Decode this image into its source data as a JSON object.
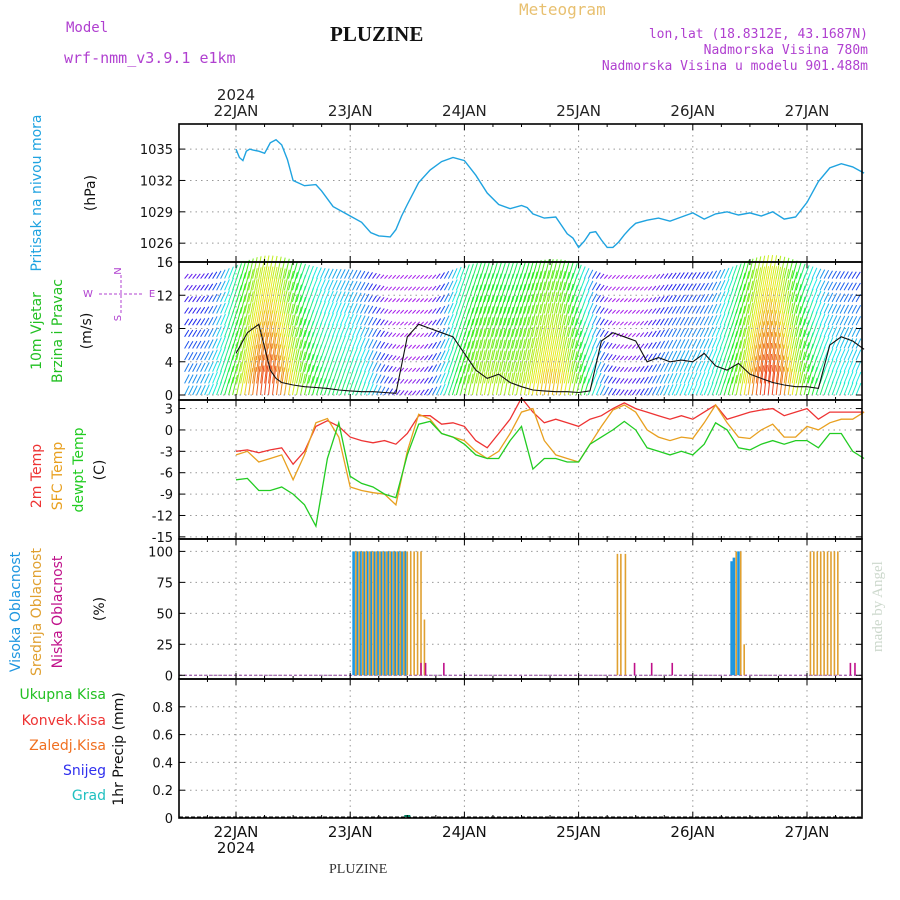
{
  "header": {
    "model_label": "Model",
    "model_name": "wrf-nmm_v3.9.1 e1km",
    "station": "PLUZINE",
    "meteogram_label": "Meteogram",
    "lonlat": "lon,lat (18.8312E, 43.1687N)",
    "altitude": "Nadmorska Visina 780m",
    "model_altitude": "Nadmorska Visina u modelu 901.488m",
    "footer_station": "PLUZINE",
    "watermark": "made by Angel"
  },
  "colors": {
    "pressure": "#1fa3e0",
    "temp2m": "#ee3333",
    "sfc": "#e8a020",
    "dewpt": "#22cc22",
    "high_cloud": "#1e96e0",
    "mid_cloud": "#e0a030",
    "low_cloud": "#c0108a",
    "purple": "#b040d0"
  },
  "time_axis": {
    "year": "2024",
    "dates": [
      "22JAN",
      "23JAN",
      "24JAN",
      "25JAN",
      "26JAN",
      "27JAN"
    ]
  },
  "chart_data": [
    {
      "type": "line",
      "panel": "pressure",
      "ylabel_main": "Pritisak na nivou mora",
      "ylabel_unit": "(hPa)",
      "ylim": [
        1024.2,
        1037.4
      ],
      "yticks": [
        "1035",
        "1032",
        "1029",
        "1026"
      ],
      "grid": true,
      "x": [
        0,
        0.03,
        0.06,
        0.09,
        0.12,
        0.15,
        0.2,
        0.25,
        0.3,
        0.35,
        0.4,
        0.45,
        0.5,
        0.6,
        0.7,
        0.75,
        0.85,
        1.0,
        1.1,
        1.18,
        1.25,
        1.35,
        1.4,
        1.45,
        1.5,
        1.6,
        1.7,
        1.8,
        1.9,
        2.0,
        2.1,
        2.2,
        2.3,
        2.4,
        2.5,
        2.55,
        2.6,
        2.7,
        2.8,
        2.9,
        2.95,
        3.0,
        3.05,
        3.1,
        3.15,
        3.2,
        3.25,
        3.3,
        3.35,
        3.4,
        3.45,
        3.5,
        3.6,
        3.7,
        3.8,
        3.9,
        4.0,
        4.1,
        4.2,
        4.3,
        4.4,
        4.5,
        4.6,
        4.7,
        4.8,
        4.9,
        5.0,
        5.1,
        5.2,
        5.3,
        5.4,
        5.5
      ],
      "series": [
        {
          "values": [
            1035.0,
            1034.2,
            1033.9,
            1034.8,
            1035.0,
            1034.9,
            1034.8,
            1034.6,
            1035.6,
            1035.9,
            1035.4,
            1034.0,
            1032.0,
            1031.5,
            1031.6,
            1031.0,
            1029.5,
            1028.6,
            1028.0,
            1027.0,
            1026.7,
            1026.6,
            1027.3,
            1028.6,
            1029.7,
            1031.8,
            1033.0,
            1033.8,
            1034.2,
            1033.9,
            1032.5,
            1030.8,
            1029.7,
            1029.3,
            1029.6,
            1029.4,
            1028.8,
            1028.4,
            1028.5,
            1026.9,
            1026.5,
            1025.6,
            1026.2,
            1027.0,
            1027.1,
            1026.3,
            1025.6,
            1025.6,
            1026.1,
            1026.8,
            1027.4,
            1027.9,
            1028.2,
            1028.4,
            1028.1,
            1028.5,
            1028.9,
            1028.3,
            1028.8,
            1029.0,
            1028.7,
            1028.9,
            1028.6,
            1029.0,
            1028.3,
            1028.5,
            1029.9,
            1031.9,
            1033.2,
            1033.6,
            1033.3,
            1032.7
          ]
        }
      ]
    },
    {
      "type": "line",
      "panel": "wind",
      "ylabel_main": "10m Vjetar",
      "ylabel_sub": "Brzina i Pravac",
      "ylabel_unit": "(m/s)",
      "compass": [
        "N",
        "E",
        "S",
        "W"
      ],
      "ylim": [
        -0.6,
        16
      ],
      "yticks": [
        "16",
        "12",
        "8",
        "4",
        "0"
      ],
      "grid": true,
      "note": "dense multicolored wind-barb field drawn behind the speed line",
      "x": [
        0,
        0.1,
        0.2,
        0.3,
        0.35,
        0.4,
        0.5,
        0.6,
        0.7,
        0.8,
        0.9,
        1.0,
        1.1,
        1.2,
        1.3,
        1.4,
        1.5,
        1.6,
        1.7,
        1.8,
        1.9,
        2.0,
        2.1,
        2.2,
        2.3,
        2.4,
        2.5,
        2.6,
        2.7,
        2.8,
        2.9,
        3.0,
        3.1,
        3.2,
        3.3,
        3.4,
        3.5,
        3.6,
        3.7,
        3.8,
        3.9,
        4.0,
        4.1,
        4.2,
        4.3,
        4.4,
        4.5,
        4.6,
        4.7,
        4.8,
        4.9,
        5.0,
        5.1,
        5.2,
        5.3,
        5.4,
        5.5
      ],
      "series": [
        {
          "name": "",
          "values": [
            5.0,
            7.5,
            8.5,
            3.0,
            2.0,
            1.5,
            1.2,
            1.0,
            0.9,
            0.8,
            0.6,
            0.5,
            0.4,
            0.4,
            0.3,
            0.2,
            7.0,
            8.5,
            8.0,
            7.5,
            7.0,
            5.0,
            3.0,
            2.0,
            2.5,
            1.5,
            1.0,
            0.6,
            0.5,
            0.4,
            0.4,
            0.3,
            0.5,
            6.5,
            7.5,
            7.0,
            6.5,
            4.0,
            4.5,
            4.0,
            4.2,
            4.0,
            5.0,
            3.5,
            3.0,
            3.8,
            2.5,
            2.0,
            1.5,
            1.2,
            1.0,
            1.0,
            0.8,
            6.0,
            7.0,
            6.5,
            5.5
          ]
        }
      ]
    },
    {
      "type": "line",
      "panel": "temperature",
      "ylabel_lines": [
        "2m Temp",
        "SFC Temp",
        "dewpt Temp"
      ],
      "ylabel_unit": "(C)",
      "ylim": [
        -15.3,
        4.2
      ],
      "yticks": [
        "3",
        "0",
        "-3",
        "-6",
        "-9",
        "-12",
        "-15"
      ],
      "grid": true,
      "x": [
        0,
        0.1,
        0.2,
        0.3,
        0.4,
        0.5,
        0.6,
        0.7,
        0.8,
        0.9,
        1.0,
        1.1,
        1.2,
        1.3,
        1.4,
        1.5,
        1.6,
        1.7,
        1.8,
        1.9,
        2.0,
        2.1,
        2.2,
        2.3,
        2.4,
        2.5,
        2.6,
        2.7,
        2.8,
        2.9,
        3.0,
        3.1,
        3.2,
        3.3,
        3.4,
        3.5,
        3.6,
        3.7,
        3.8,
        3.9,
        4.0,
        4.1,
        4.2,
        4.3,
        4.4,
        4.5,
        4.6,
        4.7,
        4.8,
        4.9,
        5.0,
        5.1,
        5.2,
        5.3,
        5.4,
        5.5
      ],
      "series": [
        {
          "name": "2m Temp",
          "values": [
            -3.0,
            -2.8,
            -3.2,
            -2.8,
            -2.5,
            -4.8,
            -3.0,
            0.5,
            1.3,
            0.5,
            -1.0,
            -1.5,
            -1.8,
            -1.5,
            -2.0,
            -0.5,
            2.0,
            2.0,
            0.8,
            1.0,
            0.5,
            -1.5,
            -2.5,
            -0.5,
            1.5,
            4.5,
            2.5,
            1.0,
            1.5,
            1.0,
            0.5,
            1.5,
            2.0,
            3.0,
            3.8,
            3.0,
            2.5,
            2.0,
            1.5,
            2.0,
            1.5,
            2.5,
            3.5,
            1.5,
            2.0,
            2.5,
            2.8,
            3.0,
            2.0,
            2.5,
            3.0,
            1.5,
            2.5,
            2.5,
            2.5,
            2.5
          ]
        },
        {
          "name": "SFC Temp",
          "values": [
            -3.5,
            -3.0,
            -4.5,
            -4.0,
            -3.5,
            -7.0,
            -3.5,
            1.0,
            1.6,
            -1.0,
            -8.0,
            -8.5,
            -8.8,
            -9.0,
            -10.5,
            -3.0,
            2.2,
            1.5,
            -0.5,
            -1.0,
            -1.5,
            -3.0,
            -4.0,
            -3.0,
            -0.5,
            2.5,
            3.0,
            -1.5,
            -3.5,
            -4.0,
            -4.5,
            -2.0,
            0.5,
            2.8,
            3.5,
            2.5,
            0.0,
            -1.0,
            -1.5,
            -1.0,
            -1.2,
            1.0,
            3.5,
            1.0,
            -1.0,
            -1.2,
            0.0,
            0.8,
            -1.0,
            -1.0,
            0.5,
            0.0,
            1.0,
            1.5,
            1.5,
            2.5
          ]
        },
        {
          "name": "dewpt Temp",
          "values": [
            -7.0,
            -6.8,
            -8.5,
            -8.5,
            -8.0,
            -9.0,
            -10.5,
            -13.5,
            -4.0,
            1.0,
            -6.5,
            -7.5,
            -8.0,
            -9.0,
            -9.5,
            -3.5,
            0.8,
            1.2,
            -0.5,
            -1.0,
            -2.0,
            -3.5,
            -4.0,
            -4.0,
            -1.5,
            0.5,
            -5.5,
            -4.0,
            -4.0,
            -4.5,
            -4.5,
            -2.0,
            -1.0,
            0.0,
            1.2,
            0.0,
            -2.5,
            -3.0,
            -3.5,
            -3.0,
            -3.5,
            -2.0,
            1.0,
            0.0,
            -2.5,
            -2.8,
            -2.0,
            -1.5,
            -2.0,
            -1.5,
            -1.5,
            -2.5,
            -0.5,
            -0.5,
            -3.0,
            -4.0
          ]
        }
      ]
    },
    {
      "type": "bar",
      "panel": "cloud",
      "ylabel_lines": [
        "Visoka Oblacnost",
        "Srednja Oblacnost",
        "Niska Oblacnost"
      ],
      "ylabel_unit": "(%)",
      "ylim": [
        -3,
        110
      ],
      "yticks": [
        "100",
        "75",
        "50",
        "25",
        "0"
      ],
      "grid": true,
      "series": [
        {
          "name": "Visoka Oblacnost",
          "x": [
            1.03,
            1.06,
            1.09,
            1.12,
            1.15,
            1.18,
            1.21,
            1.24,
            1.27,
            1.3,
            1.33,
            1.36,
            1.39,
            1.42,
            1.45,
            1.48,
            4.34,
            4.36,
            4.4
          ],
          "values": [
            100,
            100,
            100,
            100,
            100,
            100,
            100,
            100,
            100,
            100,
            100,
            100,
            100,
            100,
            100,
            100,
            92,
            95,
            100
          ]
        },
        {
          "name": "Srednja Oblacnost",
          "x": [
            1.05,
            1.08,
            1.11,
            1.14,
            1.17,
            1.2,
            1.23,
            1.26,
            1.29,
            1.32,
            1.35,
            1.38,
            1.41,
            1.44,
            1.47,
            1.5,
            1.53,
            1.56,
            1.59,
            1.62,
            1.65,
            3.34,
            3.37,
            3.41,
            4.38,
            4.42,
            4.45,
            5.03,
            5.06,
            5.09,
            5.12,
            5.15,
            5.18,
            5.21,
            5.24,
            5.27
          ],
          "values": [
            100,
            100,
            100,
            100,
            100,
            100,
            100,
            100,
            100,
            100,
            100,
            100,
            100,
            100,
            100,
            100,
            100,
            100,
            100,
            100,
            45,
            98,
            98,
            98,
            100,
            100,
            25,
            100,
            100,
            100,
            100,
            100,
            100,
            100,
            100,
            100
          ]
        },
        {
          "name": "Niska Oblacnost",
          "x": [
            1.62,
            1.66,
            1.82,
            3.49,
            3.64,
            3.82,
            5.38,
            5.42
          ],
          "values": [
            10,
            10,
            10,
            10,
            10,
            10,
            10,
            10
          ]
        }
      ]
    },
    {
      "type": "bar",
      "panel": "precip",
      "ylabel_lines": [
        "Ukupna Kisa",
        "Konvek.Kisa",
        "Zaledj.Kisa",
        "Snijeg",
        "Grad"
      ],
      "ylabel_unit": "1hr Precip (mm)",
      "ylim": [
        0,
        1.0
      ],
      "yticks": [
        "0.8",
        "0.6",
        "0.4",
        "0.2",
        "0"
      ],
      "grid": true,
      "series": [
        {
          "name": "Ukupna Kisa",
          "x": [
            1.5
          ],
          "values": [
            0.01
          ]
        }
      ]
    }
  ]
}
